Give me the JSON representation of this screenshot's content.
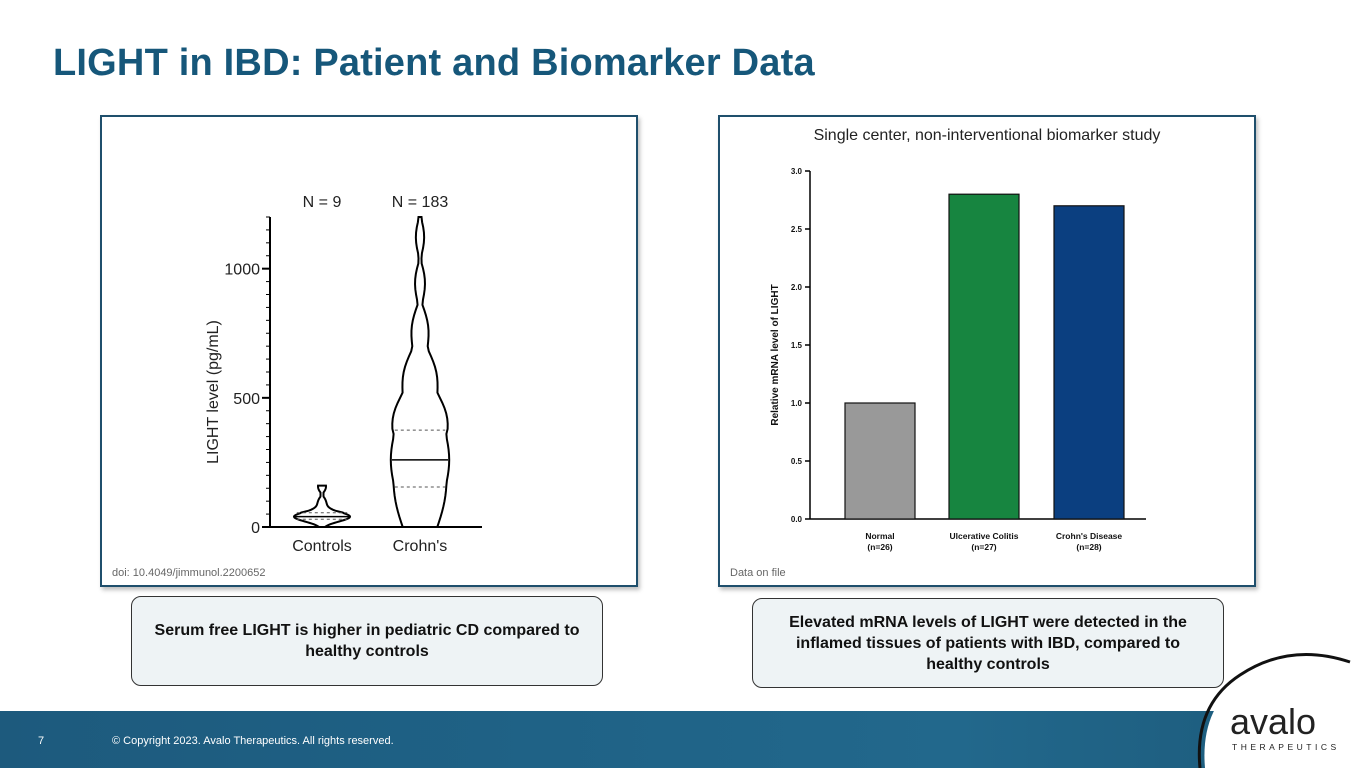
{
  "slide": {
    "title": "LIGHT in IBD: Patient and Biomarker Data",
    "slide_number": "7",
    "copyright": "© Copyright 2023. Avalo Therapeutics. All rights reserved.",
    "logo_word": "avalo",
    "logo_sub": "THERAPEUTICS"
  },
  "left_panel": {
    "source": "doi: 10.4049/jimmunol.2200652",
    "callout": "Serum free LIGHT is higher in pediatric CD compared to healthy controls"
  },
  "right_panel": {
    "subtitle": "Single center, non-interventional biomarker study",
    "source": "Data on file",
    "callout": "Elevated mRNA levels of LIGHT were detected in the inflamed tissues of patients with IBD, compared to healthy controls"
  },
  "chart_data": [
    {
      "type": "violin",
      "title": "",
      "xlabel": "",
      "ylabel": "LIGHT level (pg/mL)",
      "ylim": [
        0,
        1200
      ],
      "yticks": [
        "0",
        "500",
        "1000"
      ],
      "categories": [
        "Controls",
        "Crohn's"
      ],
      "n_labels": [
        "N = 9",
        "N = 183"
      ],
      "series": [
        {
          "category": "Controls",
          "median": 40,
          "q1": 30,
          "q3": 55,
          "min": 0,
          "max": 160
        },
        {
          "category": "Crohn's",
          "median": 260,
          "q1": 155,
          "q3": 375,
          "min": 0,
          "max": 1200
        }
      ],
      "colors": {
        "line": "#000000"
      }
    },
    {
      "type": "bar",
      "title": "",
      "xlabel": "",
      "ylabel": "Relative mRNA level of LIGHT",
      "ylim": [
        0,
        3.0
      ],
      "yticks": [
        "0.0",
        "0.5",
        "1.0",
        "1.5",
        "2.0",
        "2.5",
        "3.0"
      ],
      "categories": [
        {
          "name": "Normal",
          "n": "(n=26)"
        },
        {
          "name": "Ulcerative Colitis",
          "n": "(n=27)"
        },
        {
          "name": "Crohn's Disease",
          "n": "(n=28)"
        }
      ],
      "values": [
        1.0,
        2.8,
        2.7
      ],
      "colors": [
        "#999999",
        "#178540",
        "#0b3f80"
      ]
    }
  ]
}
